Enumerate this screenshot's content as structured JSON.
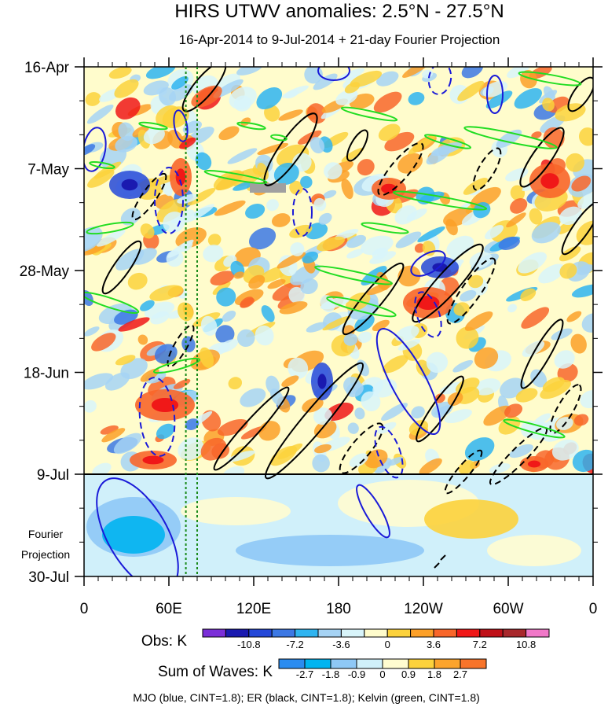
{
  "chart_data": {
    "type": "heatmap",
    "title": "HIRS UTWV anomalies: 2.5°N - 27.5°N",
    "subtitle": "16-Apr-2014 to 9-Jul-2014 + 21-day Fourier Projection",
    "xlabel": "",
    "ylabel": "",
    "x_tick_labels": [
      "0",
      "60E",
      "120E",
      "180",
      "120W",
      "60W",
      "0"
    ],
    "y_tick_labels": [
      "16-Apr",
      "7-May",
      "28-May",
      "18-Jun",
      "9-Jul"
    ],
    "y_bottom_label": "30-Jul",
    "projection_label_lines": [
      "Fourier",
      "Projection"
    ],
    "reference_longitudes_deg_east": [
      72,
      80
    ],
    "missing_data_color": "#a0a0a0",
    "obs_colorbar": {
      "label": "Obs: K",
      "tick_labels": [
        "-10.8",
        "-7.2",
        "-3.6",
        "0",
        "3.6",
        "7.2",
        "10.8"
      ],
      "colors": [
        "#7b2fd8",
        "#1a1ab0",
        "#2448d8",
        "#3c78e4",
        "#2fb4f0",
        "#a6d3f4",
        "#d8f4fa",
        "#fffccc",
        "#fcd23c",
        "#fca028",
        "#f8662a",
        "#f01818",
        "#c01018",
        "#a8282c",
        "#f078c8"
      ]
    },
    "sum_of_waves_colorbar": {
      "label": "Sum of Waves: K",
      "tick_labels": [
        "-2.7",
        "-1.8",
        "-0.9",
        "0",
        "0.9",
        "1.8",
        "2.7"
      ],
      "colors": [
        "#2b8cf0",
        "#00b4f0",
        "#8ec8f6",
        "#d0f0fa",
        "#fffcd0",
        "#fcd23c",
        "#fca42c",
        "#f8742a"
      ]
    },
    "contours": [
      {
        "wave": "MJO",
        "color": "#1a1ad8",
        "cint": 1.8
      },
      {
        "wave": "ER",
        "color": "#000000",
        "cint": 1.8
      },
      {
        "wave": "Kelvin",
        "color": "#22dd22",
        "cint": 1.8
      }
    ],
    "footnote": "MJO (blue, CINT=1.8); ER (black, CINT=1.8); Kelvin (green, CINT=1.8)"
  }
}
